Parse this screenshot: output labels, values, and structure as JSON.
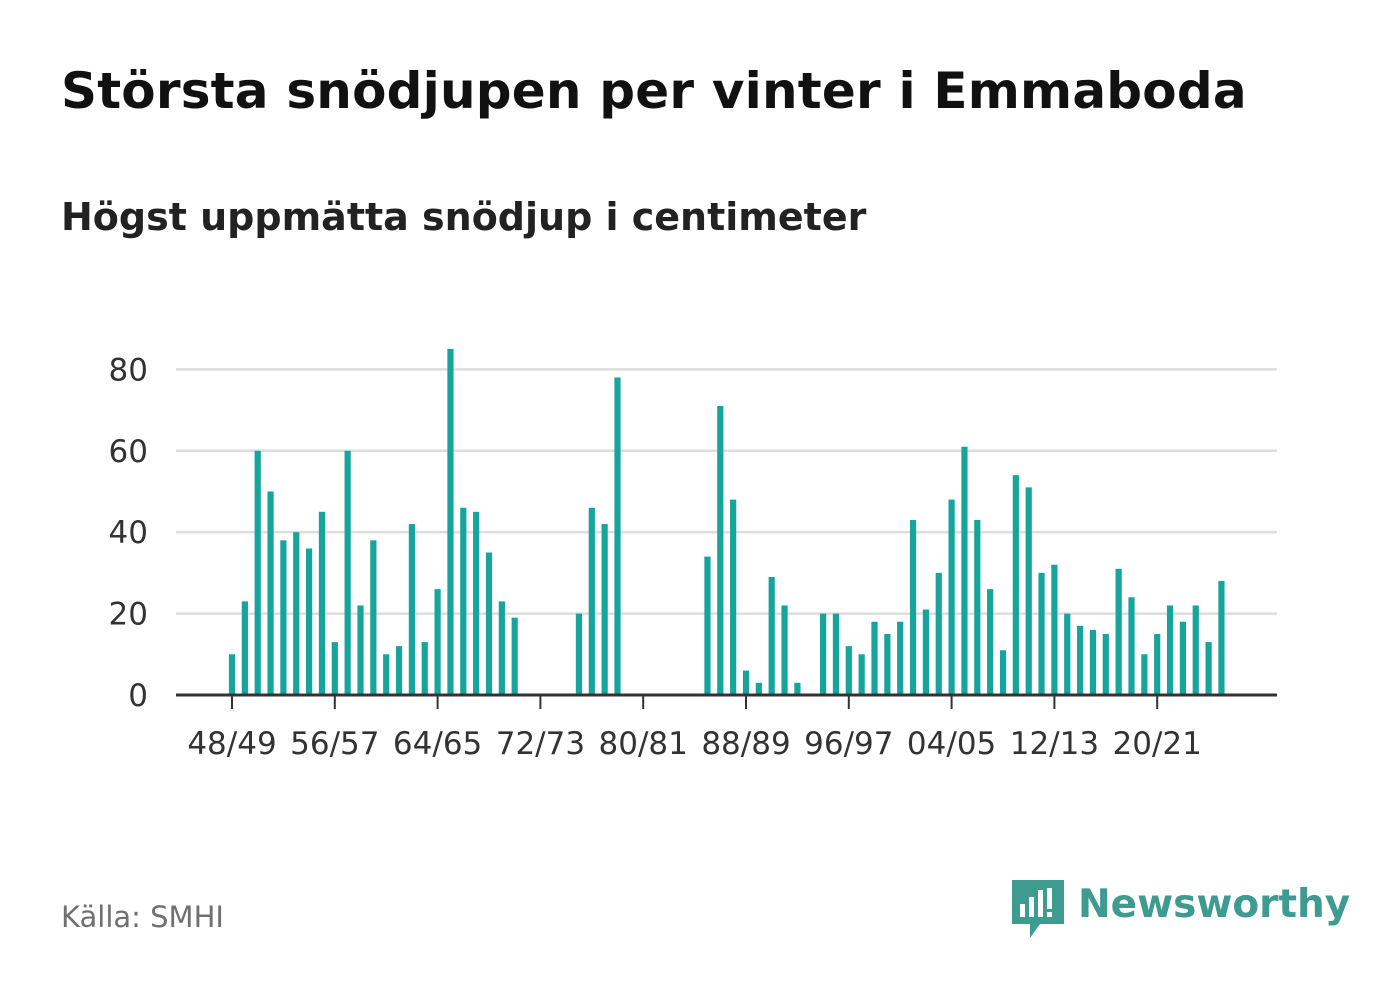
{
  "title": "Största snödjupen per vinter i Emmaboda",
  "subtitle": "Högst uppmätta snödjup i centimeter",
  "source": "Källa: SMHI",
  "brand": {
    "name": "Newsworthy",
    "logo_icon": "newsworthy-bar-chart-icon",
    "color": "#3d9b90"
  },
  "chart_data": {
    "type": "bar",
    "title": "Största snödjupen per vinter i Emmaboda",
    "subtitle": "Högst uppmätta snödjup i centimeter",
    "ylabel": "",
    "xlabel": "",
    "ylim": [
      0,
      85
    ],
    "yticks": [
      0,
      20,
      40,
      60,
      80
    ],
    "xtick_labels": [
      "48/49",
      "56/57",
      "64/65",
      "72/73",
      "80/81",
      "88/89",
      "96/97",
      "04/05",
      "12/13",
      "20/21"
    ],
    "grid": true,
    "bar_color": "#16a59c",
    "categories": [
      "48/49",
      "49/50",
      "50/51",
      "51/52",
      "52/53",
      "53/54",
      "54/55",
      "55/56",
      "56/57",
      "57/58",
      "58/59",
      "59/60",
      "60/61",
      "61/62",
      "62/63",
      "63/64",
      "64/65",
      "65/66",
      "66/67",
      "67/68",
      "68/69",
      "69/70",
      "70/71",
      "71/72",
      "72/73",
      "73/74",
      "74/75",
      "75/76",
      "76/77",
      "77/78",
      "78/79",
      "79/80",
      "80/81",
      "81/82",
      "82/83",
      "83/84",
      "84/85",
      "85/86",
      "86/87",
      "87/88",
      "88/89",
      "89/90",
      "90/91",
      "91/92",
      "92/93",
      "93/94",
      "94/95",
      "95/96",
      "96/97",
      "97/98",
      "98/99",
      "99/00",
      "00/01",
      "01/02",
      "02/03",
      "03/04",
      "04/05",
      "05/06",
      "06/07",
      "07/08",
      "08/09",
      "09/10",
      "10/11",
      "11/12",
      "12/13",
      "13/14",
      "14/15",
      "15/16",
      "16/17",
      "17/18",
      "18/19",
      "19/20",
      "20/21",
      "21/22",
      "22/23",
      "23/24",
      "24/25",
      "25/26"
    ],
    "values": [
      10,
      23,
      60,
      50,
      38,
      40,
      36,
      45,
      13,
      60,
      22,
      38,
      10,
      12,
      42,
      13,
      26,
      85,
      46,
      45,
      35,
      23,
      19,
      null,
      null,
      null,
      null,
      20,
      46,
      42,
      78,
      null,
      null,
      null,
      null,
      null,
      null,
      34,
      71,
      48,
      6,
      3,
      29,
      22,
      3,
      null,
      20,
      20,
      12,
      10,
      18,
      15,
      18,
      43,
      21,
      30,
      48,
      61,
      43,
      26,
      11,
      54,
      51,
      30,
      32,
      20,
      17,
      16,
      15,
      31,
      24,
      10,
      15,
      22,
      18,
      22,
      13,
      28
    ]
  }
}
